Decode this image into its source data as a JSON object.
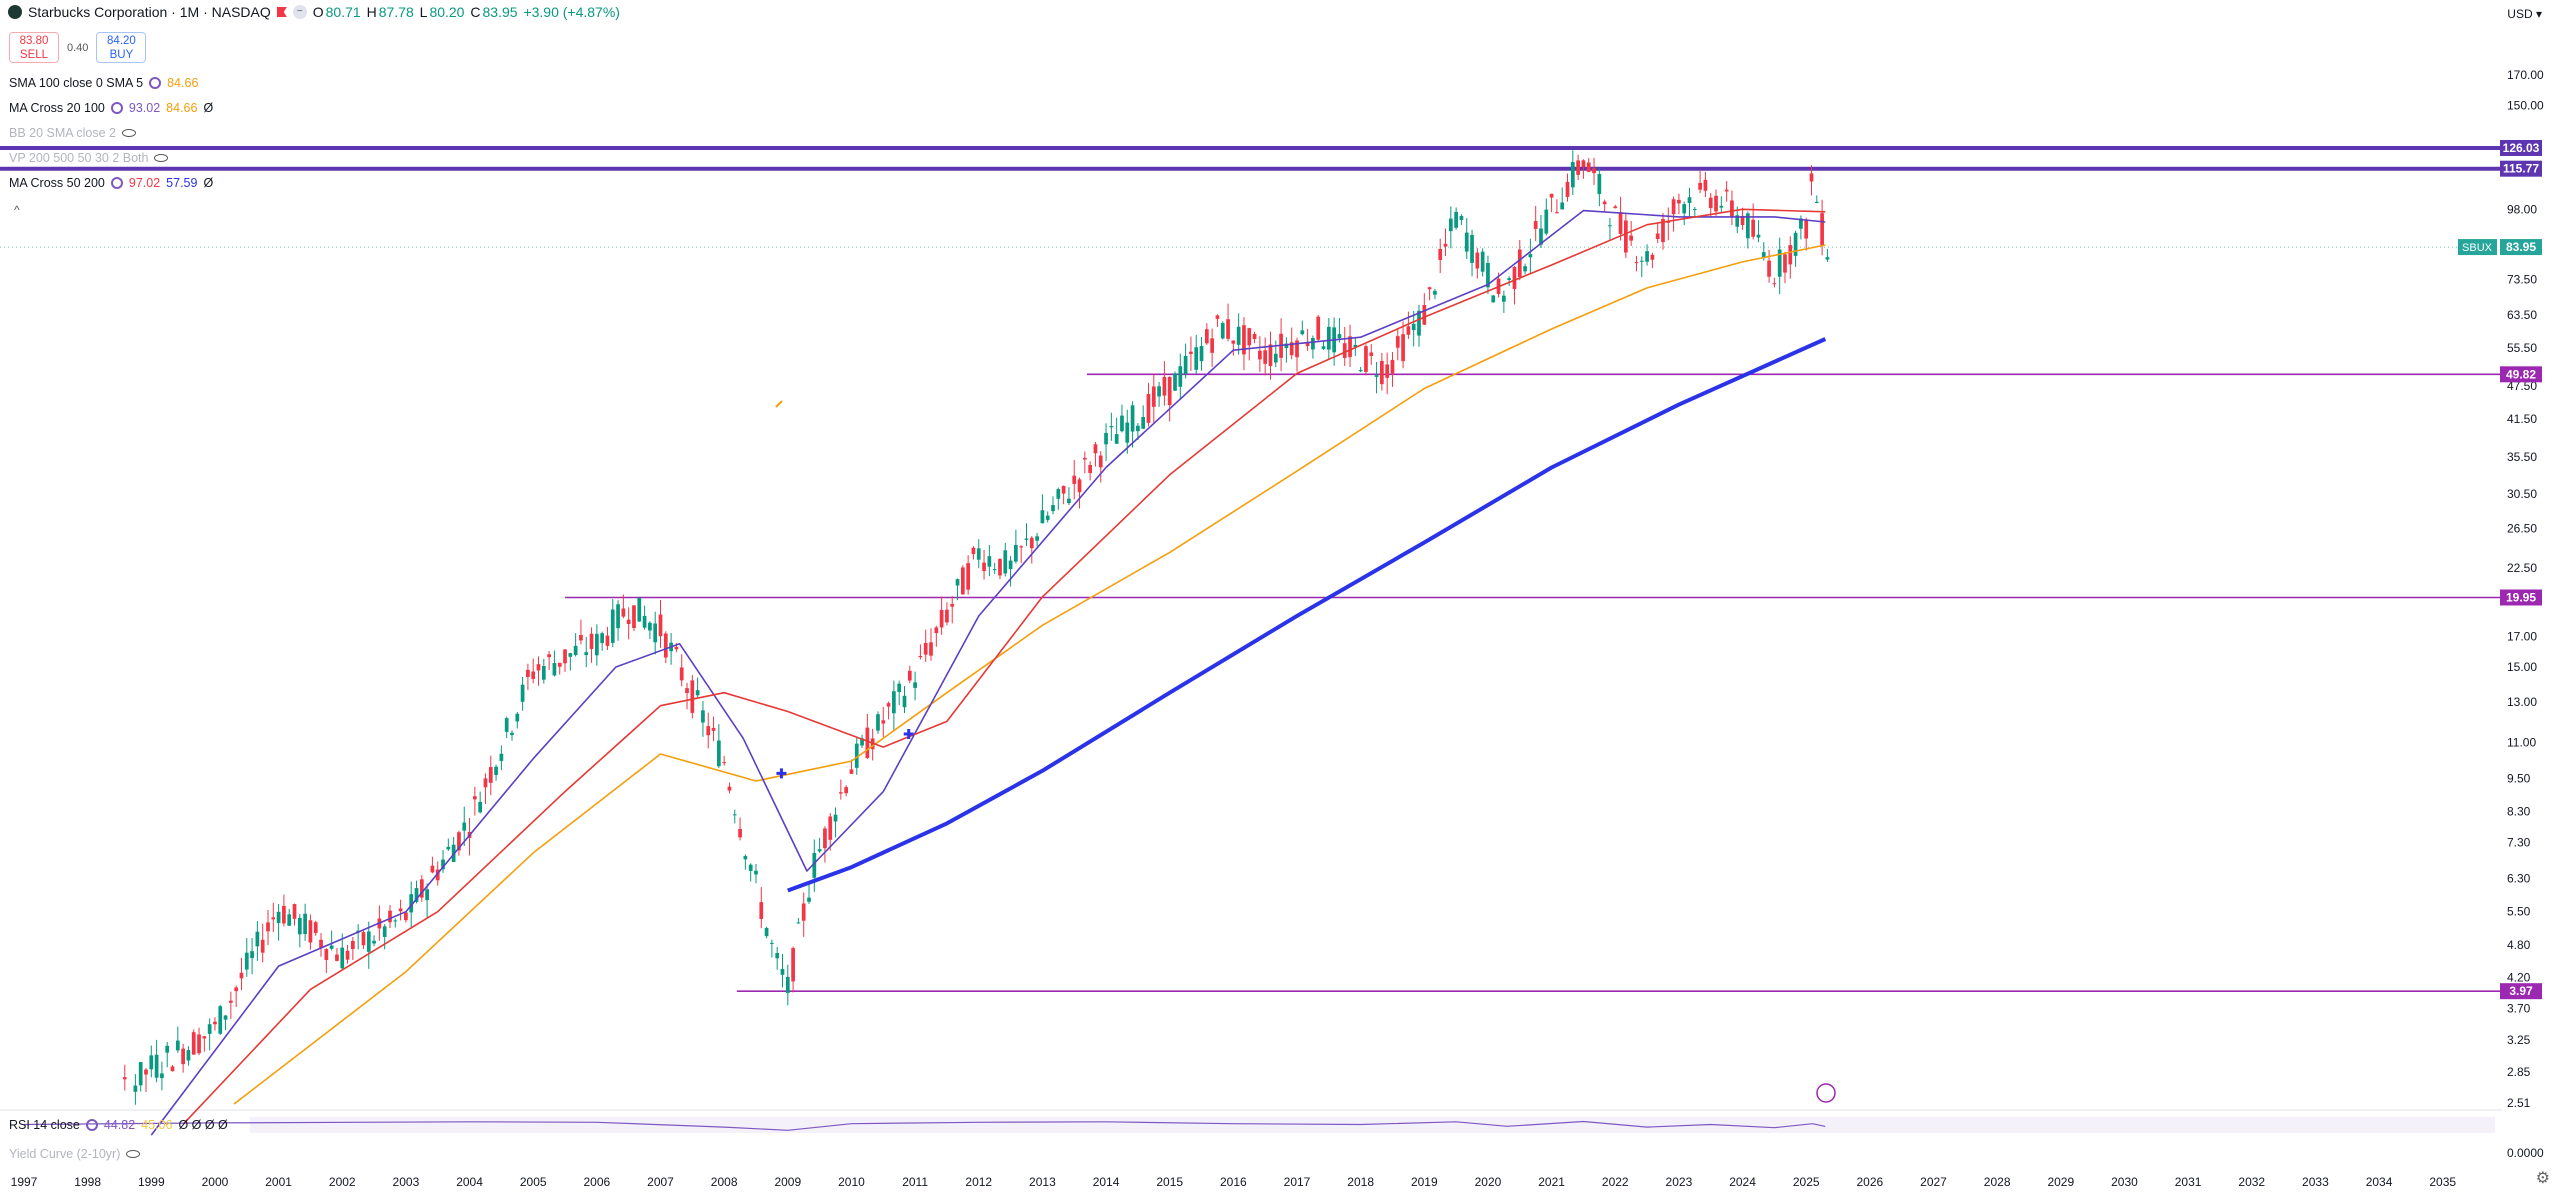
{
  "header": {
    "title": "Starbucks Corporation · 1M · NASDAQ",
    "open_label": "O",
    "open": "80.71",
    "high_label": "H",
    "high": "87.78",
    "low_label": "L",
    "low": "80.20",
    "close_label": "C",
    "close": "83.95",
    "change": "+3.90 (+4.87%)"
  },
  "trade": {
    "sell_price": "83.80",
    "sell_label": "SELL",
    "spread": "0.40",
    "buy_price": "84.20",
    "buy_label": "BUY"
  },
  "indicators": [
    {
      "name": "SMA 100 close 0 SMA 5",
      "v1": "84.66",
      "v1_color": "#f59e0b",
      "v2": "",
      "v3": ""
    },
    {
      "name": "MA Cross 20 100",
      "v1": "93.02",
      "v1_color": "#7e57c2",
      "v2": "84.66",
      "v2_color": "#f59e0b",
      "v3": "Ø"
    },
    {
      "name": "BB 20 SMA close 2",
      "v1": "",
      "v2": "",
      "v3": ""
    },
    {
      "name": "VP 200 500 50 30 2 Both",
      "v1": "",
      "v2": "",
      "v3": ""
    },
    {
      "name": "MA Cross 50 200",
      "v1": "97.02",
      "v1_color": "#f23645",
      "v2": "57.59",
      "v2_color": "#2b33e8",
      "v3": "Ø"
    }
  ],
  "rsi": {
    "name": "RSI 14 close",
    "v1": "44.82",
    "v2": "45.06",
    "dots": "Ø Ø Ø Ø",
    "yield_curve": "Yield Curve (2-10yr)"
  },
  "currency": "USD",
  "symbol_tag": "SBUX",
  "colors": {
    "up": "#089981",
    "down": "#f23645",
    "sma100": "#f59e0b",
    "ma20": "#5b3fc4",
    "ma_cross_red": "#e53935",
    "ma200": "#2b33e8",
    "hline": "#9c27b0",
    "hline_bold": "#5e35b1"
  },
  "chart_data": {
    "type": "candlestick",
    "title": "Starbucks Corporation · 1M · NASDAQ",
    "xlabel": "",
    "ylabel": "",
    "y_scale": "log",
    "x_ticks": [
      "1997",
      "1998",
      "1999",
      "2000",
      "2001",
      "2002",
      "2003",
      "2004",
      "2005",
      "2006",
      "2007",
      "2008",
      "2009",
      "2010",
      "2011",
      "2012",
      "2013",
      "2014",
      "2015",
      "2016",
      "2017",
      "2018",
      "2019",
      "2020",
      "2021",
      "2022",
      "2023",
      "2024",
      "2025",
      "2026",
      "2027",
      "2028",
      "2029",
      "2030",
      "2031",
      "2032",
      "2033",
      "2034",
      "2035"
    ],
    "y_ticks": [
      "170.00",
      "150.00",
      "98.00",
      "73.50",
      "63.50",
      "55.50",
      "47.50",
      "41.50",
      "35.50",
      "30.50",
      "26.50",
      "22.50",
      "17.00",
      "15.00",
      "13.00",
      "11.00",
      "9.50",
      "8.30",
      "7.30",
      "6.30",
      "5.50",
      "4.80",
      "4.20",
      "3.70",
      "3.25",
      "2.85",
      "2.51"
    ],
    "price_labels": [
      {
        "value": 126.03,
        "text": "126.03",
        "bold": true
      },
      {
        "value": 115.77,
        "text": "115.77",
        "bold": true
      },
      {
        "value": 49.82,
        "text": "49.82",
        "bold": false
      },
      {
        "value": 19.95,
        "text": "19.95",
        "bold": false
      },
      {
        "value": 3.97,
        "text": "3.97",
        "bold": false
      }
    ],
    "last_price": {
      "value": 83.95,
      "text": "83.95"
    },
    "yearly_closes": [
      {
        "x": 1997.0,
        "y": 1.8
      },
      {
        "x": 1998.0,
        "y": 2.3
      },
      {
        "x": 1999.0,
        "y": 2.9
      },
      {
        "x": 2000.0,
        "y": 3.4
      },
      {
        "x": 2001.0,
        "y": 5.6
      },
      {
        "x": 2002.0,
        "y": 4.6
      },
      {
        "x": 2003.0,
        "y": 5.4
      },
      {
        "x": 2004.0,
        "y": 8.0
      },
      {
        "x": 2005.0,
        "y": 14.8
      },
      {
        "x": 2006.0,
        "y": 16.5
      },
      {
        "x": 2006.5,
        "y": 19.2
      },
      {
        "x": 2007.0,
        "y": 17.5
      },
      {
        "x": 2008.0,
        "y": 10.2
      },
      {
        "x": 2008.8,
        "y": 4.5
      },
      {
        "x": 2009.0,
        "y": 4.0
      },
      {
        "x": 2009.4,
        "y": 6.6
      },
      {
        "x": 2010.0,
        "y": 10.0
      },
      {
        "x": 2011.0,
        "y": 14.5
      },
      {
        "x": 2012.0,
        "y": 24.0
      },
      {
        "x": 2012.5,
        "y": 22.5
      },
      {
        "x": 2013.0,
        "y": 27.0
      },
      {
        "x": 2014.0,
        "y": 37.5
      },
      {
        "x": 2015.0,
        "y": 47.0
      },
      {
        "x": 2015.8,
        "y": 61.0
      },
      {
        "x": 2016.5,
        "y": 54.0
      },
      {
        "x": 2017.3,
        "y": 59.5
      },
      {
        "x": 2017.8,
        "y": 55.0
      },
      {
        "x": 2018.4,
        "y": 51.0
      },
      {
        "x": 2019.0,
        "y": 64.0
      },
      {
        "x": 2019.5,
        "y": 95.0
      },
      {
        "x": 2020.2,
        "y": 68.0
      },
      {
        "x": 2021.0,
        "y": 98.0
      },
      {
        "x": 2021.5,
        "y": 120.0
      },
      {
        "x": 2022.1,
        "y": 90.0
      },
      {
        "x": 2022.5,
        "y": 80.0
      },
      {
        "x": 2023.0,
        "y": 102.0
      },
      {
        "x": 2023.5,
        "y": 104.0
      },
      {
        "x": 2024.0,
        "y": 95.0
      },
      {
        "x": 2024.5,
        "y": 76.0
      },
      {
        "x": 2025.0,
        "y": 92.0
      },
      {
        "x": 2025.1,
        "y": 112.0
      },
      {
        "x": 2025.3,
        "y": 83.95
      }
    ],
    "series": [
      {
        "name": "SMA 100",
        "color": "#f59e0b",
        "points": [
          {
            "x": 2000.3,
            "y": 2.5
          },
          {
            "x": 2003.0,
            "y": 4.3
          },
          {
            "x": 2005.0,
            "y": 7.0
          },
          {
            "x": 2007.0,
            "y": 10.5
          },
          {
            "x": 2008.5,
            "y": 9.4
          },
          {
            "x": 2010.0,
            "y": 10.2
          },
          {
            "x": 2011.5,
            "y": 13.5
          },
          {
            "x": 2013.0,
            "y": 17.8
          },
          {
            "x": 2015.0,
            "y": 24.0
          },
          {
            "x": 2017.0,
            "y": 33.5
          },
          {
            "x": 2019.0,
            "y": 47.0
          },
          {
            "x": 2021.0,
            "y": 60.0
          },
          {
            "x": 2022.5,
            "y": 71.0
          },
          {
            "x": 2024.0,
            "y": 79.0
          },
          {
            "x": 2025.3,
            "y": 84.66
          }
        ]
      },
      {
        "name": "MA 20",
        "color": "#5b3fc4",
        "points": [
          {
            "x": 1999.0,
            "y": 2.2
          },
          {
            "x": 2001.0,
            "y": 4.4
          },
          {
            "x": 2003.0,
            "y": 5.5
          },
          {
            "x": 2005.0,
            "y": 10.3
          },
          {
            "x": 2006.3,
            "y": 15.0
          },
          {
            "x": 2007.3,
            "y": 16.5
          },
          {
            "x": 2008.3,
            "y": 11.2
          },
          {
            "x": 2009.3,
            "y": 6.5
          },
          {
            "x": 2010.5,
            "y": 9.0
          },
          {
            "x": 2012.0,
            "y": 18.5
          },
          {
            "x": 2014.0,
            "y": 34.0
          },
          {
            "x": 2016.0,
            "y": 55.0
          },
          {
            "x": 2018.0,
            "y": 58.0
          },
          {
            "x": 2020.0,
            "y": 72.0
          },
          {
            "x": 2021.5,
            "y": 97.5
          },
          {
            "x": 2023.0,
            "y": 95.0
          },
          {
            "x": 2024.5,
            "y": 95.0
          },
          {
            "x": 2025.3,
            "y": 93.02
          }
        ]
      },
      {
        "name": "MA 50",
        "color": "#e53935",
        "points": [
          {
            "x": 1999.5,
            "y": 2.3
          },
          {
            "x": 2001.5,
            "y": 4.0
          },
          {
            "x": 2003.5,
            "y": 5.5
          },
          {
            "x": 2005.5,
            "y": 9.0
          },
          {
            "x": 2007.0,
            "y": 12.8
          },
          {
            "x": 2008.0,
            "y": 13.5
          },
          {
            "x": 2009.0,
            "y": 12.5
          },
          {
            "x": 2010.5,
            "y": 10.8
          },
          {
            "x": 2011.5,
            "y": 12.0
          },
          {
            "x": 2013.0,
            "y": 20.0
          },
          {
            "x": 2015.0,
            "y": 33.0
          },
          {
            "x": 2017.0,
            "y": 50.0
          },
          {
            "x": 2019.0,
            "y": 63.0
          },
          {
            "x": 2021.0,
            "y": 78.0
          },
          {
            "x": 2022.5,
            "y": 92.0
          },
          {
            "x": 2024.0,
            "y": 98.0
          },
          {
            "x": 2025.3,
            "y": 97.02
          }
        ]
      },
      {
        "name": "MA 200",
        "color": "#2b33e8",
        "points": [
          {
            "x": 2009.0,
            "y": 6.0
          },
          {
            "x": 2010.0,
            "y": 6.6
          },
          {
            "x": 2011.5,
            "y": 7.9
          },
          {
            "x": 2013.0,
            "y": 9.8
          },
          {
            "x": 2015.0,
            "y": 13.5
          },
          {
            "x": 2017.0,
            "y": 18.5
          },
          {
            "x": 2019.0,
            "y": 25.0
          },
          {
            "x": 2021.0,
            "y": 34.0
          },
          {
            "x": 2023.0,
            "y": 44.0
          },
          {
            "x": 2025.3,
            "y": 57.59
          }
        ]
      }
    ],
    "hlines": [
      {
        "value": 126.03,
        "from": 1996.6,
        "bold": true
      },
      {
        "value": 115.77,
        "from": 1996.6,
        "bold": true
      },
      {
        "value": 49.82,
        "from": 2013.7,
        "bold": false
      },
      {
        "value": 19.95,
        "from": 2005.5,
        "bold": false
      },
      {
        "value": 3.97,
        "from": 2008.2,
        "bold": false
      }
    ],
    "cross_markers": [
      {
        "x": 2008.9,
        "y": 9.7
      },
      {
        "x": 2010.9,
        "y": 11.4
      }
    ],
    "rsi": [
      {
        "x": 1997,
        "y": 52
      },
      {
        "x": 2000,
        "y": 58
      },
      {
        "x": 2004,
        "y": 62
      },
      {
        "x": 2006,
        "y": 60
      },
      {
        "x": 2008,
        "y": 42
      },
      {
        "x": 2009,
        "y": 30
      },
      {
        "x": 2010,
        "y": 55
      },
      {
        "x": 2012,
        "y": 60
      },
      {
        "x": 2014,
        "y": 62
      },
      {
        "x": 2016,
        "y": 55
      },
      {
        "x": 2018,
        "y": 52
      },
      {
        "x": 2019.5,
        "y": 62
      },
      {
        "x": 2020.3,
        "y": 45
      },
      {
        "x": 2021.5,
        "y": 63
      },
      {
        "x": 2022.5,
        "y": 42
      },
      {
        "x": 2023.5,
        "y": 52
      },
      {
        "x": 2024.5,
        "y": 40
      },
      {
        "x": 2025.1,
        "y": 55
      },
      {
        "x": 2025.3,
        "y": 44.82
      }
    ]
  }
}
